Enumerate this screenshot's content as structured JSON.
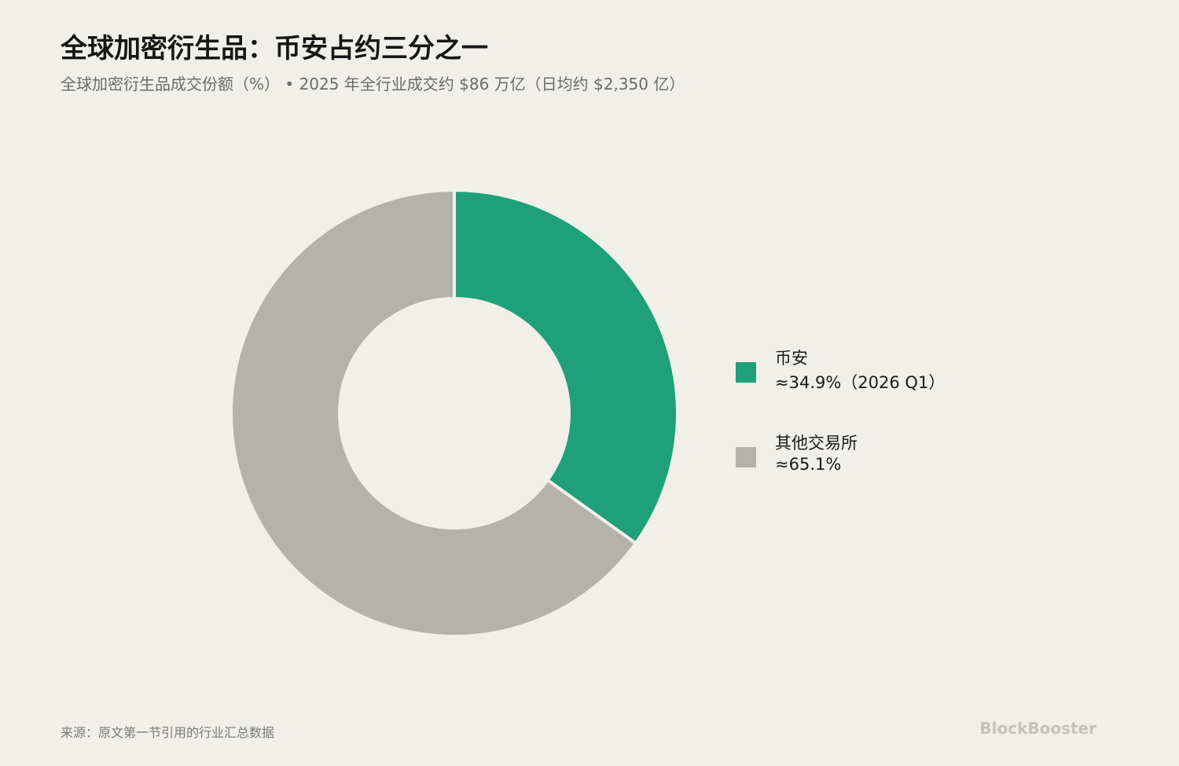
{
  "title": "全球加密衍生品：币安占约三分之一",
  "subtitle": "全球加密衍生品成交份额（%） • 2025 年全行业成交约 $86 万亿（日均约 $2,350 亿）",
  "source": "来源：原文第一节引用的行业汇总数据",
  "brand": "BlockBooster",
  "colors": {
    "binance": "#1fa078",
    "others": "#b4b2ac",
    "background": "#f0efea"
  },
  "chart_data": {
    "type": "pie",
    "variant": "donut",
    "title": "全球加密衍生品：币安占约三分之一",
    "subtitle": "全球加密衍生品成交份额（%） • 2025 年全行业成交约 $86 万亿（日均约 $2,350 亿）",
    "legend_position": "right",
    "slices": [
      {
        "name": "币安",
        "value": 34.9,
        "label": "≈34.9%（2026 Q1）",
        "color": "#1fa078"
      },
      {
        "name": "其他交易所",
        "value": 65.1,
        "label": "≈65.1%",
        "color": "#b4b2ac"
      }
    ]
  }
}
